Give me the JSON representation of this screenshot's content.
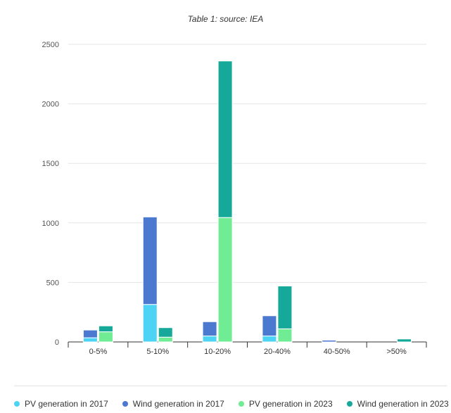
{
  "chart_data": {
    "type": "bar",
    "title": "Table 1: source: IEA",
    "xlabel": "",
    "ylabel": "",
    "ylim": [
      0,
      2500
    ],
    "yticks": [
      0,
      500,
      1000,
      1500,
      2000,
      2500
    ],
    "categories": [
      "0-5%",
      "5-10%",
      "10-20%",
      "20-40%",
      "40-50%",
      ">50%"
    ],
    "stacks": [
      {
        "stack": "2017",
        "series": [
          "PV generation in 2017",
          "Wind generation in 2017"
        ]
      },
      {
        "stack": "2023",
        "series": [
          "PV generation in 2023",
          "Wind generation in 2023"
        ]
      }
    ],
    "series": [
      {
        "name": "PV generation in 2017",
        "stack": "2017",
        "color": "#4dd4f5",
        "values": [
          35,
          315,
          50,
          50,
          0,
          0
        ]
      },
      {
        "name": "Wind generation in 2017",
        "stack": "2017",
        "color": "#4a79cf",
        "values": [
          65,
          735,
          120,
          170,
          15,
          0
        ]
      },
      {
        "name": "PV generation in 2023",
        "stack": "2023",
        "color": "#6fec94",
        "values": [
          85,
          40,
          1045,
          110,
          0,
          0
        ]
      },
      {
        "name": "Wind generation in 2023",
        "stack": "2023",
        "color": "#16a99a",
        "values": [
          50,
          80,
          1315,
          360,
          0,
          25
        ]
      }
    ],
    "grid": true,
    "legend": "bottom"
  }
}
